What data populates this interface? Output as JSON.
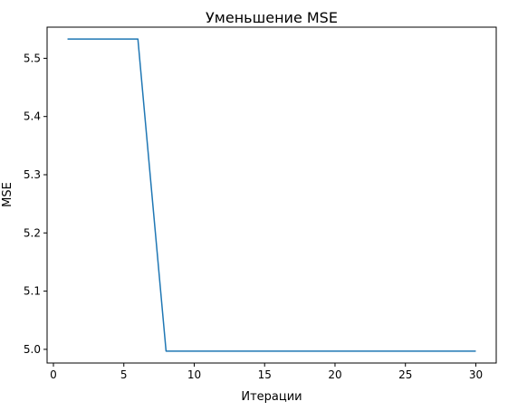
{
  "chart_data": {
    "type": "line",
    "title": "Уменьшение MSE",
    "xlabel": "Итерации",
    "ylabel": "MSE",
    "xlim": [
      -0.45,
      31.45
    ],
    "ylim": [
      4.9765,
      5.5535
    ],
    "xticks": [
      0,
      5,
      10,
      15,
      20,
      25,
      30
    ],
    "yticks": [
      5.0,
      5.1,
      5.2,
      5.3,
      5.4,
      5.5
    ],
    "ytick_labels": [
      "5.0",
      "5.1",
      "5.2",
      "5.3",
      "5.4",
      "5.5"
    ],
    "grid": false,
    "legend": "none",
    "series": [
      {
        "color": "#1f77b4",
        "x": [
          1,
          2,
          3,
          4,
          5,
          6,
          7,
          8,
          9,
          10,
          11,
          12,
          13,
          14,
          15,
          16,
          17,
          18,
          19,
          20,
          21,
          22,
          23,
          24,
          25,
          26,
          27,
          28,
          29,
          30
        ],
        "values": [
          5.533,
          5.533,
          5.533,
          5.533,
          5.533,
          5.533,
          5.265,
          4.997,
          4.997,
          4.997,
          4.997,
          4.997,
          4.997,
          4.997,
          4.997,
          4.997,
          4.997,
          4.997,
          4.997,
          4.997,
          4.997,
          4.997,
          4.997,
          4.997,
          4.997,
          4.997,
          4.997,
          4.997,
          4.997,
          4.997
        ]
      }
    ]
  }
}
